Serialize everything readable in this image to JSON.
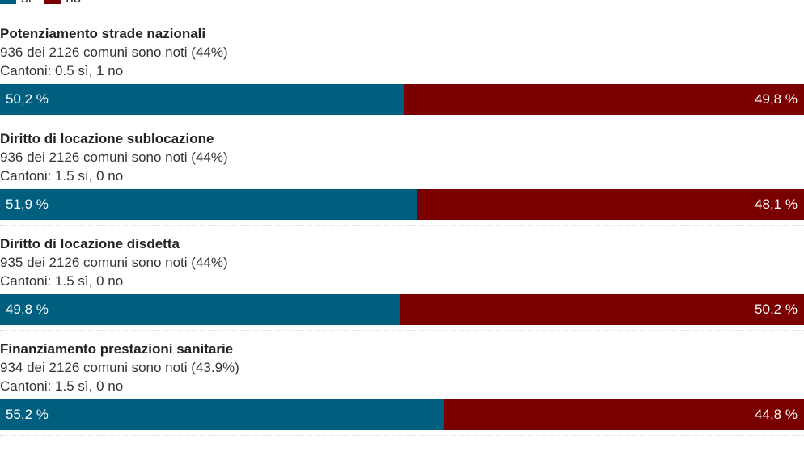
{
  "colors": {
    "yes": "#005f7f",
    "no": "#7a0000"
  },
  "legend": {
    "yes": "sì",
    "no": "no"
  },
  "chart_data": {
    "type": "bar",
    "stacked": true,
    "orientation": "horizontal",
    "series_names": [
      "sì",
      "no"
    ],
    "items": [
      {
        "title": "Potenziamento strade nazionali",
        "comuni": "936 dei 2126 comuni sono noti (44%)",
        "cantoni": "Cantoni: 0.5 sì, 1 no",
        "yes": 50.2,
        "no": 49.8,
        "yes_label": "50,2 %",
        "no_label": "49,8 %"
      },
      {
        "title": "Diritto di locazione sublocazione",
        "comuni": "936 dei 2126 comuni sono noti (44%)",
        "cantoni": "Cantoni: 1.5 sì, 0 no",
        "yes": 51.9,
        "no": 48.1,
        "yes_label": "51,9 %",
        "no_label": "48,1 %"
      },
      {
        "title": "Diritto di locazione disdetta",
        "comuni": "935 dei 2126 comuni sono noti (44%)",
        "cantoni": "Cantoni: 1.5 sì, 0 no",
        "yes": 49.8,
        "no": 50.2,
        "yes_label": "49,8 %",
        "no_label": "50,2 %"
      },
      {
        "title": "Finanziamento prestazioni sanitarie",
        "comuni": "934 dei 2126 comuni sono noti (43.9%)",
        "cantoni": "Cantoni: 1.5 sì, 0 no",
        "yes": 55.2,
        "no": 44.8,
        "yes_label": "55,2 %",
        "no_label": "44,8 %"
      }
    ]
  }
}
